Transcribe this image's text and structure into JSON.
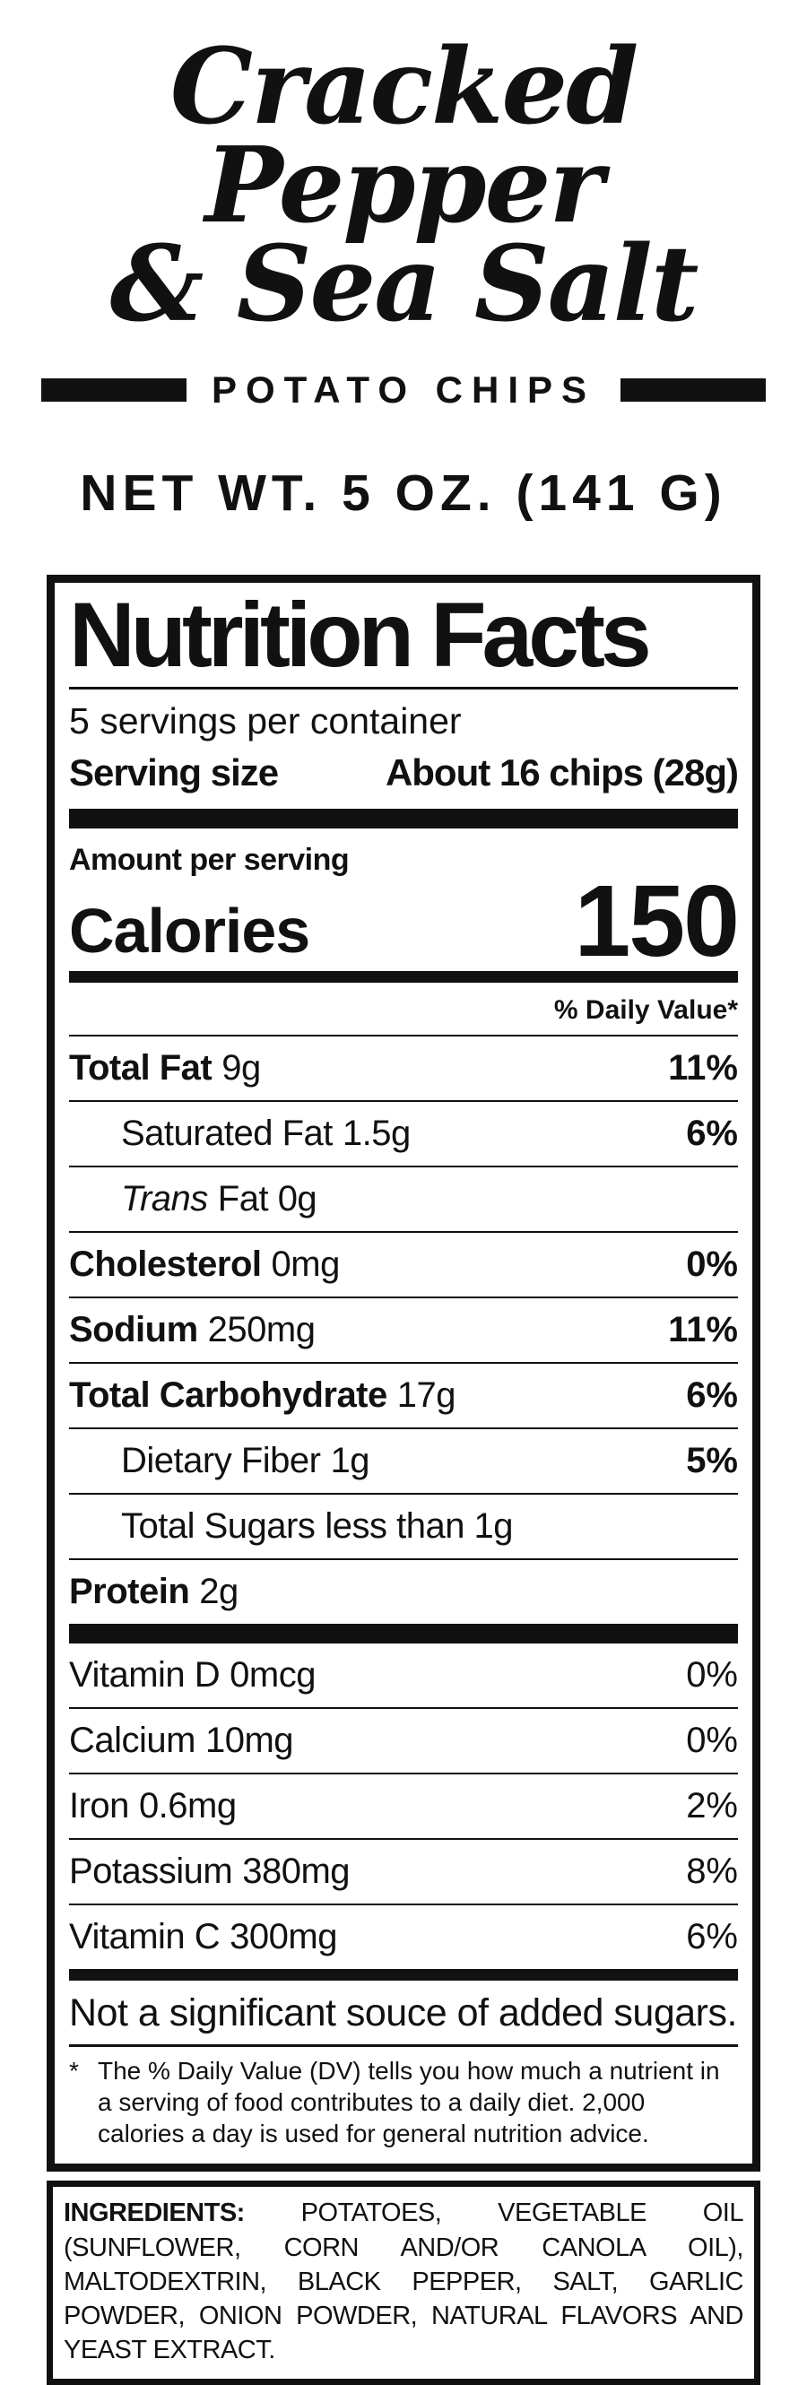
{
  "brand": {
    "title_line1": "Cracked Pepper",
    "title_line2": "& Sea Salt",
    "subtitle": "POTATO CHIPS",
    "net_weight": "NET WT. 5 OZ. (141 G)"
  },
  "nutrition": {
    "title": "Nutrition Facts",
    "servings_per_container": "5 servings per container",
    "serving_size_label": "Serving size",
    "serving_size_value": "About 16 chips (28g)",
    "amount_per_serving": "Amount per serving",
    "calories_label": "Calories",
    "calories_value": "150",
    "daily_value_header": "% Daily Value*",
    "rows": [
      {
        "label": "Total Fat",
        "amount": "9g",
        "dv": "11%"
      },
      {
        "label": "Saturated Fat",
        "amount": "1.5g",
        "dv": "6%"
      },
      {
        "label": "Trans",
        "amount": "Fat 0g",
        "dv": ""
      },
      {
        "label": "Cholesterol",
        "amount": "0mg",
        "dv": "0%"
      },
      {
        "label": "Sodium",
        "amount": "250mg",
        "dv": "11%"
      },
      {
        "label": "Total Carbohydrate",
        "amount": "17g",
        "dv": "6%"
      },
      {
        "label": "Dietary Fiber",
        "amount": "1g",
        "dv": "5%"
      },
      {
        "label": "Total Sugars",
        "amount": "less than 1g",
        "dv": ""
      },
      {
        "label": "Protein",
        "amount": "2g",
        "dv": ""
      }
    ],
    "vitamins": [
      {
        "label": "Vitamin D",
        "amount": "0mcg",
        "dv": "0%"
      },
      {
        "label": "Calcium",
        "amount": "10mg",
        "dv": "0%"
      },
      {
        "label": "Iron",
        "amount": "0.6mg",
        "dv": "2%"
      },
      {
        "label": "Potassium",
        "amount": "380mg",
        "dv": "8%"
      },
      {
        "label": "Vitamin C",
        "amount": "300mg",
        "dv": "6%"
      }
    ],
    "no_added_sugars_note": "Not a significant souce of added sugars.",
    "footnote_marker": "*",
    "footnote_text": "The % Daily Value (DV) tells you how much a nutrient in a serving of food contributes to a daily diet. 2,000 calories a day is used for general nutrition advice."
  },
  "ingredients": {
    "label": "INGREDIENTS:",
    "text": "POTATOES, VEGETABLE OIL (SUNFLOWER, CORN AND/OR CANOLA OIL), MALTODEXTRIN, BLACK PEPPER, SALT, GARLIC POWDER, ONION POWDER, NATURAL FLAVORS AND YEAST EXTRACT."
  },
  "colors": {
    "ink": "#111111",
    "background": "#ffffff"
  }
}
